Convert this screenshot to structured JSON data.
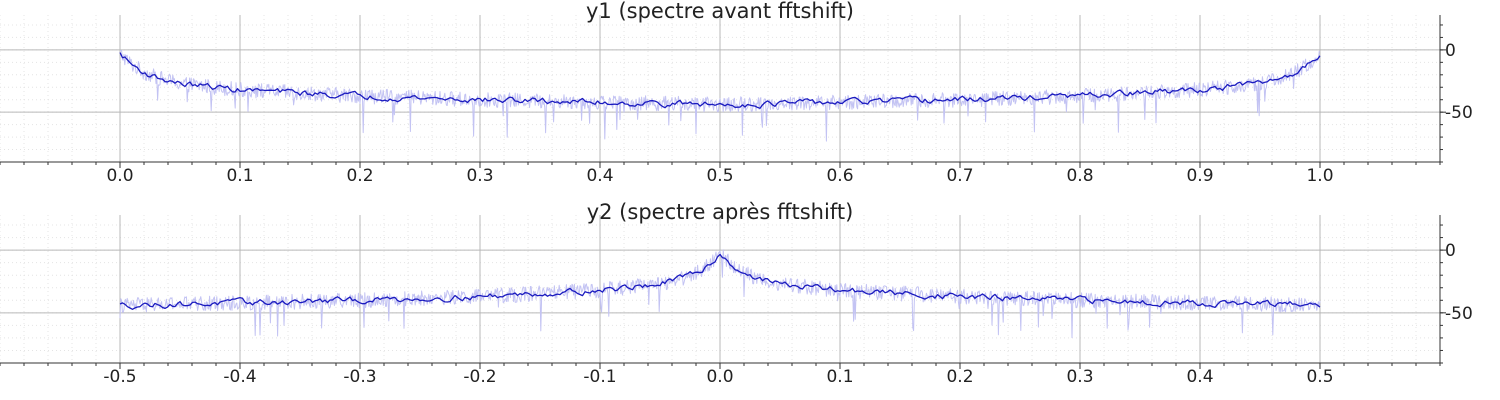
{
  "chart_data": [
    {
      "type": "line",
      "title": "y1 (spectre avant fftshift)",
      "xlabel": "",
      "ylabel": "",
      "xlim": [
        -0.1,
        1.1
      ],
      "ylim": [
        -90,
        28
      ],
      "x_ticks": [
        "0.0",
        "0.1",
        "0.2",
        "0.3",
        "0.4",
        "0.5",
        "0.6",
        "0.7",
        "0.8",
        "0.9",
        "1.0"
      ],
      "y_ticks": [
        "0",
        "-50"
      ],
      "y_tick_values": [
        0,
        -50
      ],
      "grid": true,
      "legend": "none",
      "series": [
        {
          "style": "raw",
          "color": "#c3c3f3",
          "x": [
            0.0,
            0.01,
            0.02,
            0.03,
            0.05,
            0.1,
            0.2,
            0.3,
            0.4,
            0.5,
            0.6,
            0.7,
            0.8,
            0.9,
            0.95,
            0.97,
            0.98,
            0.99,
            1.0
          ],
          "y": [
            -3,
            -12,
            -18,
            -22,
            -27,
            -32,
            -37,
            -40,
            -42,
            -44,
            -42,
            -40,
            -37,
            -32,
            -27,
            -22,
            -18,
            -12,
            -3
          ]
        },
        {
          "style": "smoothed",
          "color": "#1a1abf",
          "x": [
            0.0,
            0.01,
            0.02,
            0.03,
            0.05,
            0.1,
            0.2,
            0.3,
            0.4,
            0.5,
            0.6,
            0.7,
            0.8,
            0.9,
            0.95,
            0.97,
            0.98,
            0.99,
            1.0
          ],
          "y": [
            -3,
            -12,
            -18,
            -22,
            -27,
            -32,
            -37,
            -40,
            -42,
            -44,
            -42,
            -40,
            -37,
            -32,
            -27,
            -22,
            -18,
            -12,
            -3
          ]
        }
      ]
    },
    {
      "type": "line",
      "title": "y2 (spectre après fftshift)",
      "xlabel": "",
      "ylabel": "",
      "xlim": [
        -0.6,
        0.6
      ],
      "ylim": [
        -90,
        28
      ],
      "x_ticks": [
        "-0.5",
        "-0.4",
        "-0.3",
        "-0.2",
        "-0.1",
        "0.0",
        "0.1",
        "0.2",
        "0.3",
        "0.4",
        "0.5"
      ],
      "y_ticks": [
        "0",
        "-50"
      ],
      "y_tick_values": [
        0,
        -50
      ],
      "grid": true,
      "legend": "none",
      "series": [
        {
          "style": "raw",
          "color": "#c3c3f3",
          "x": [
            -0.5,
            -0.4,
            -0.3,
            -0.2,
            -0.1,
            -0.05,
            -0.03,
            -0.02,
            -0.01,
            0.0,
            0.01,
            0.02,
            0.03,
            0.05,
            0.1,
            0.2,
            0.3,
            0.4,
            0.5
          ],
          "y": [
            -44,
            -42,
            -40,
            -37,
            -32,
            -27,
            -22,
            -18,
            -12,
            -3,
            -12,
            -18,
            -22,
            -27,
            -32,
            -37,
            -40,
            -42,
            -44
          ]
        },
        {
          "style": "smoothed",
          "color": "#1a1abf",
          "x": [
            -0.5,
            -0.4,
            -0.3,
            -0.2,
            -0.1,
            -0.05,
            -0.03,
            -0.02,
            -0.01,
            0.0,
            0.01,
            0.02,
            0.03,
            0.05,
            0.1,
            0.2,
            0.3,
            0.4,
            0.5
          ],
          "y": [
            -44,
            -42,
            -40,
            -37,
            -32,
            -27,
            -22,
            -18,
            -12,
            -3,
            -12,
            -18,
            -22,
            -27,
            -32,
            -37,
            -40,
            -42,
            -44
          ]
        }
      ]
    }
  ]
}
